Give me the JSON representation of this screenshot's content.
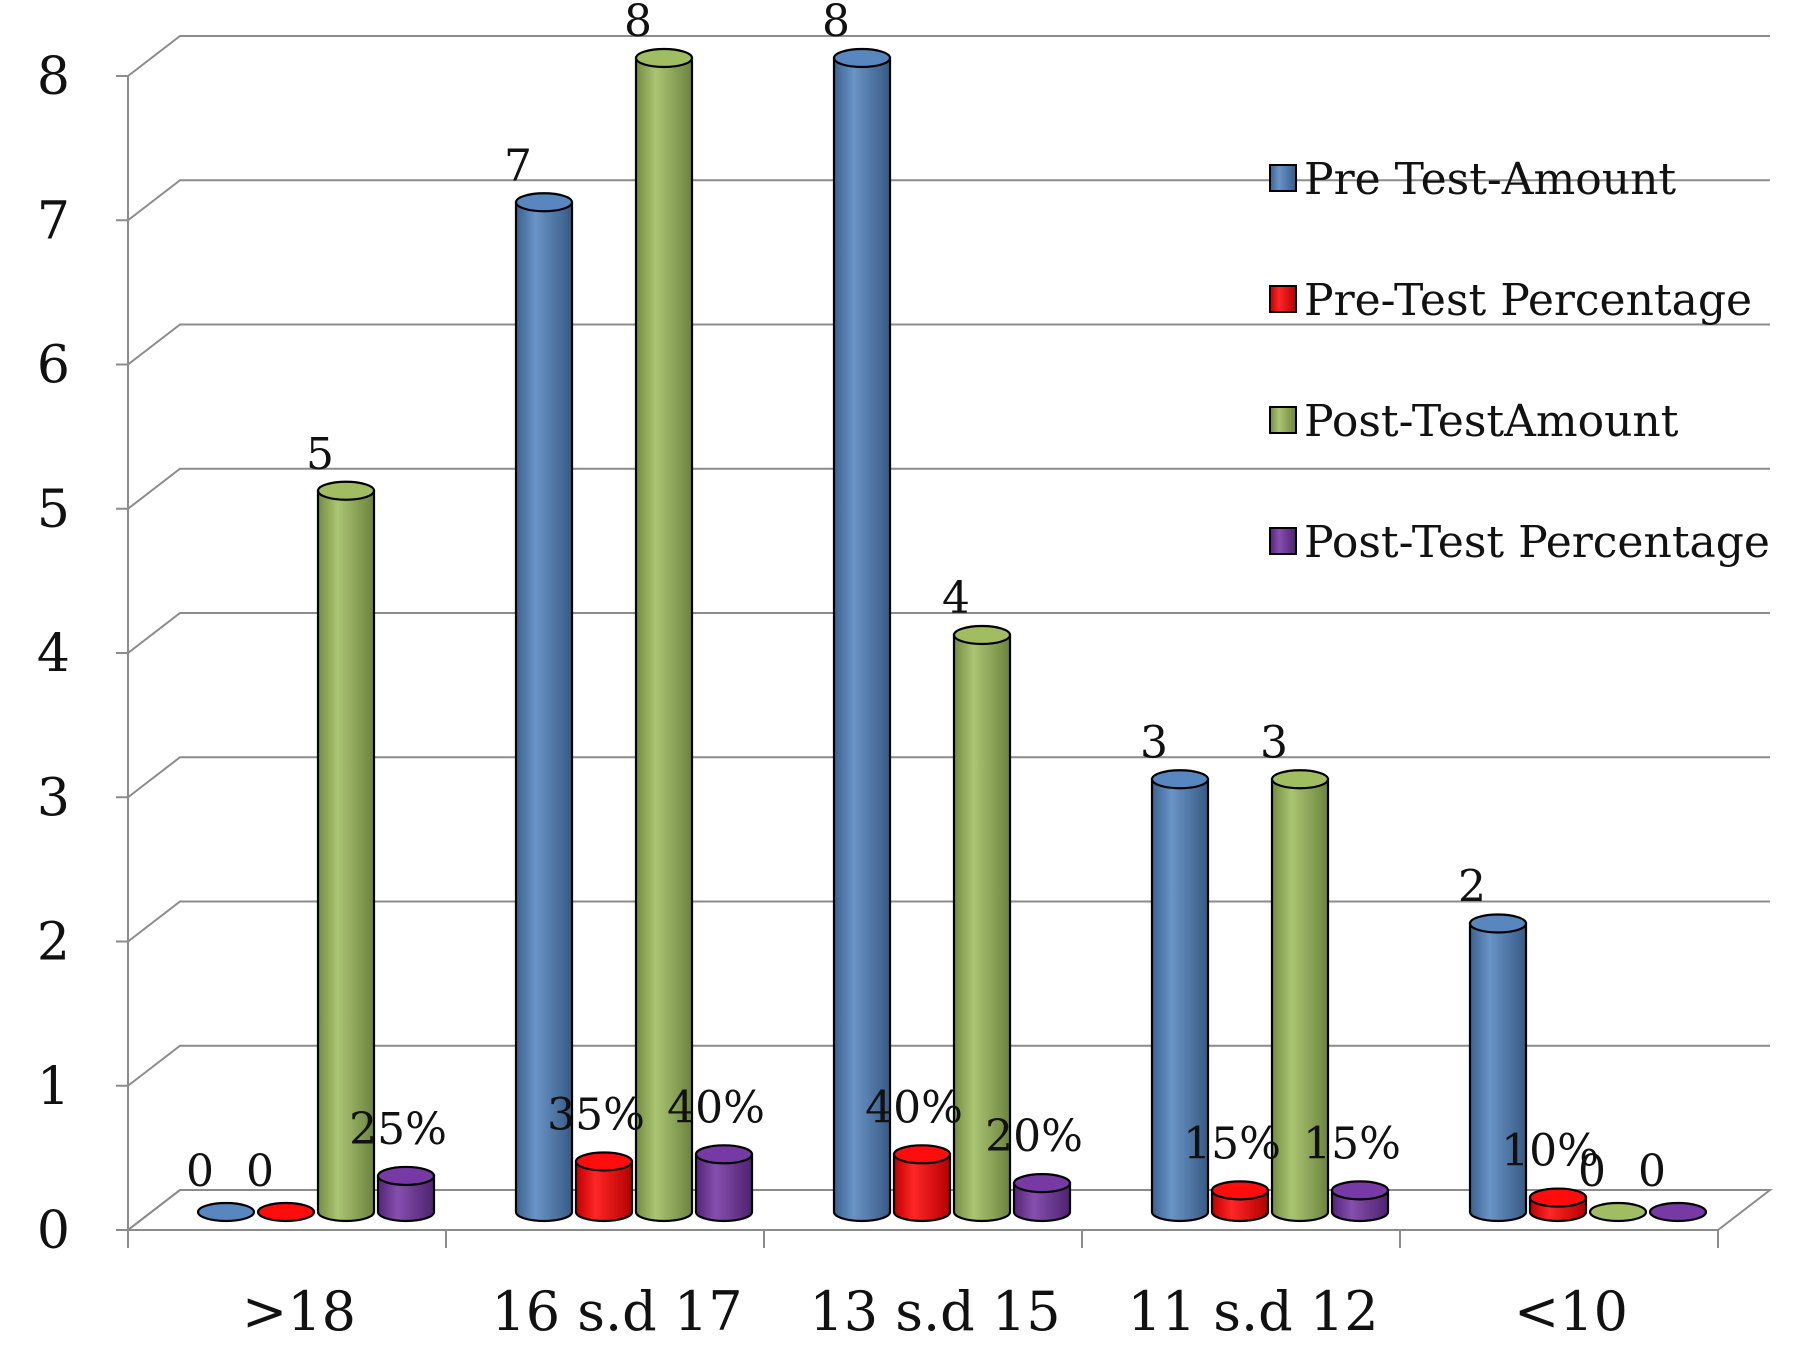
{
  "chart_data": {
    "type": "bar",
    "style": "3d-cylinder",
    "title": "",
    "xlabel": "",
    "ylabel": "",
    "ylim": [
      0,
      8
    ],
    "yticks": [
      "0",
      "1",
      "2",
      "3",
      "4",
      "5",
      "6",
      "7",
      "8"
    ],
    "grid": true,
    "legend_position": "right",
    "categories": [
      ">18",
      "16 s.d 17",
      "13 s.d 15",
      "11 s.d 12",
      "<10"
    ],
    "series": [
      {
        "name": "Pre Test-Amount",
        "color": "#4f81bd",
        "values": [
          0,
          7,
          8,
          3,
          2
        ],
        "labels": [
          "0",
          "7",
          "8",
          "3",
          "2"
        ]
      },
      {
        "name": "Pre-Test Percentage",
        "color": "#ff0000",
        "values": [
          0,
          0.35,
          0.4,
          0.15,
          0.1
        ],
        "labels": [
          "0",
          "35%",
          "40%",
          "15%",
          "10%"
        ]
      },
      {
        "name": "Post-TestAmount",
        "color": "#9bbb59",
        "values": [
          5,
          8,
          4,
          3,
          0
        ],
        "labels": [
          "5",
          "8",
          "4",
          "3",
          "0"
        ]
      },
      {
        "name": "Post-Test Percentage",
        "color": "#7030a0",
        "values": [
          0.25,
          0.4,
          0.2,
          0.15,
          0
        ],
        "labels": [
          "25%",
          "40%",
          "20%",
          "15%",
          "0"
        ]
      }
    ]
  }
}
